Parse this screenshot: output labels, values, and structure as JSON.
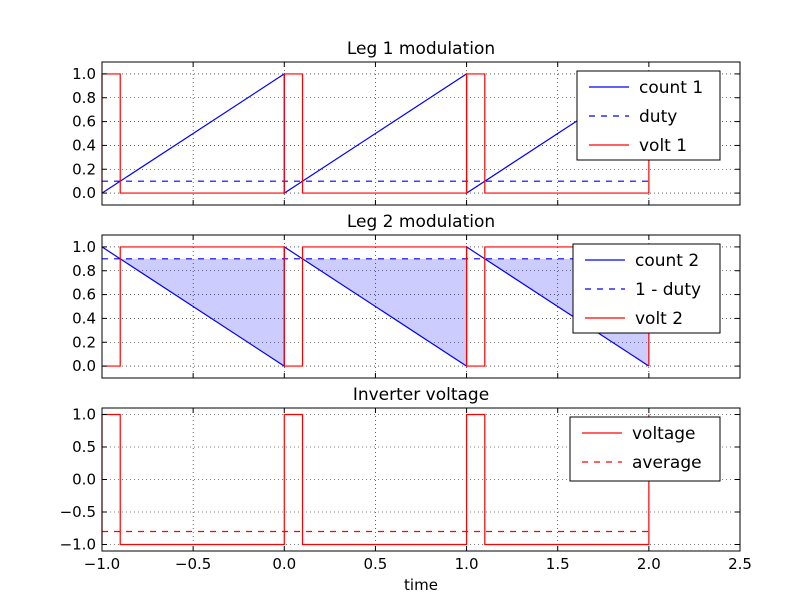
{
  "chart_data": [
    {
      "type": "line",
      "title": "Leg 1 modulation",
      "xlim": [
        -1.0,
        2.5
      ],
      "ylim": [
        -0.1,
        1.1
      ],
      "xticks": [
        -1.0,
        -0.5,
        0.0,
        0.5,
        1.0,
        1.5,
        2.0,
        2.5
      ],
      "yticks": [
        0.0,
        0.2,
        0.4,
        0.6,
        0.8,
        1.0
      ],
      "ytick_labels": [
        "0.0",
        "0.2",
        "0.4",
        "0.6",
        "0.8",
        "1.0"
      ],
      "grid": true,
      "legend_position": "top-right",
      "series": [
        {
          "name": "count 1",
          "color": "#0000ff",
          "dash": "solid",
          "x": [
            -1.0,
            0.0,
            0.0,
            1.0,
            1.0,
            2.0
          ],
          "y": [
            0.0,
            1.0,
            0.0,
            1.0,
            0.0,
            1.0
          ]
        },
        {
          "name": "duty",
          "color": "#0000ff",
          "dash": "dashed",
          "x": [
            -1.0,
            2.0
          ],
          "y": [
            0.1,
            0.1
          ]
        },
        {
          "name": "volt 1",
          "color": "#ff0000",
          "dash": "solid",
          "x": [
            -1.0,
            -1.0,
            -0.9,
            -0.9,
            0.0,
            0.0,
            0.1,
            0.1,
            1.0,
            1.0,
            1.1,
            1.1,
            2.0,
            2.0
          ],
          "y": [
            0.0,
            1.0,
            1.0,
            0.0,
            0.0,
            1.0,
            1.0,
            0.0,
            0.0,
            1.0,
            1.0,
            0.0,
            0.0,
            1.0
          ]
        }
      ]
    },
    {
      "type": "line",
      "title": "Leg 2 modulation",
      "xlim": [
        -1.0,
        2.5
      ],
      "ylim": [
        -0.1,
        1.1
      ],
      "xticks": [
        -1.0,
        -0.5,
        0.0,
        0.5,
        1.0,
        1.5,
        2.0,
        2.5
      ],
      "yticks": [
        0.0,
        0.2,
        0.4,
        0.6,
        0.8,
        1.0
      ],
      "ytick_labels": [
        "0.0",
        "0.2",
        "0.4",
        "0.6",
        "0.8",
        "1.0"
      ],
      "grid": true,
      "legend_position": "top-right",
      "fills": [
        {
          "color": "#0000ff",
          "opacity": 0.2,
          "x": [
            -0.9,
            0.0
          ],
          "y_lower": [
            0.9,
            0.0
          ],
          "y_upper": [
            0.9,
            0.9
          ]
        },
        {
          "color": "#0000ff",
          "opacity": 0.2,
          "x": [
            0.1,
            1.0
          ],
          "y_lower": [
            0.9,
            0.0
          ],
          "y_upper": [
            0.9,
            0.9
          ]
        },
        {
          "color": "#0000ff",
          "opacity": 0.2,
          "x": [
            1.1,
            2.0
          ],
          "y_lower": [
            0.9,
            0.0
          ],
          "y_upper": [
            0.9,
            0.9
          ]
        }
      ],
      "series": [
        {
          "name": "count 2",
          "color": "#0000ff",
          "dash": "solid",
          "x": [
            -1.0,
            0.0,
            0.0,
            1.0,
            1.0,
            2.0
          ],
          "y": [
            1.0,
            0.0,
            1.0,
            0.0,
            1.0,
            0.0
          ]
        },
        {
          "name": "1 - duty",
          "color": "#0000ff",
          "dash": "dashed",
          "x": [
            -1.0,
            2.0
          ],
          "y": [
            0.9,
            0.9
          ]
        },
        {
          "name": "volt 2",
          "color": "#ff0000",
          "dash": "solid",
          "x": [
            -1.0,
            -0.9,
            -0.9,
            0.0,
            0.0,
            0.1,
            0.1,
            1.0,
            1.0,
            1.1,
            1.1,
            2.0,
            2.0
          ],
          "y": [
            0.0,
            0.0,
            1.0,
            1.0,
            0.0,
            0.0,
            1.0,
            1.0,
            0.0,
            0.0,
            1.0,
            1.0,
            0.0
          ]
        }
      ]
    },
    {
      "type": "line",
      "title": "Inverter voltage",
      "xlabel": "time",
      "xlim": [
        -1.0,
        2.5
      ],
      "ylim": [
        -1.1,
        1.1
      ],
      "xticks": [
        -1.0,
        -0.5,
        0.0,
        0.5,
        1.0,
        1.5,
        2.0,
        2.5
      ],
      "xtick_labels": [
        "−1.0",
        "−0.5",
        "0.0",
        "0.5",
        "1.0",
        "1.5",
        "2.0",
        "2.5"
      ],
      "yticks": [
        -1.0,
        -0.5,
        0.0,
        0.5,
        1.0
      ],
      "ytick_labels": [
        "−1.0",
        "−0.5",
        "0.0",
        "0.5",
        "1.0"
      ],
      "grid": true,
      "legend_position": "top-right",
      "series": [
        {
          "name": "voltage",
          "color": "#ff0000",
          "dash": "solid",
          "x": [
            -1.0,
            -1.0,
            -0.9,
            -0.9,
            0.0,
            0.0,
            0.1,
            0.1,
            1.0,
            1.0,
            1.1,
            1.1,
            2.0,
            2.0
          ],
          "y": [
            -1.0,
            1.0,
            1.0,
            -1.0,
            -1.0,
            1.0,
            1.0,
            -1.0,
            -1.0,
            1.0,
            1.0,
            -1.0,
            -1.0,
            1.0
          ]
        },
        {
          "name": "average",
          "color": "#ff0000",
          "dash": "dashed",
          "x": [
            -1.0,
            2.0
          ],
          "y": [
            -0.8,
            -0.8
          ]
        }
      ]
    }
  ]
}
